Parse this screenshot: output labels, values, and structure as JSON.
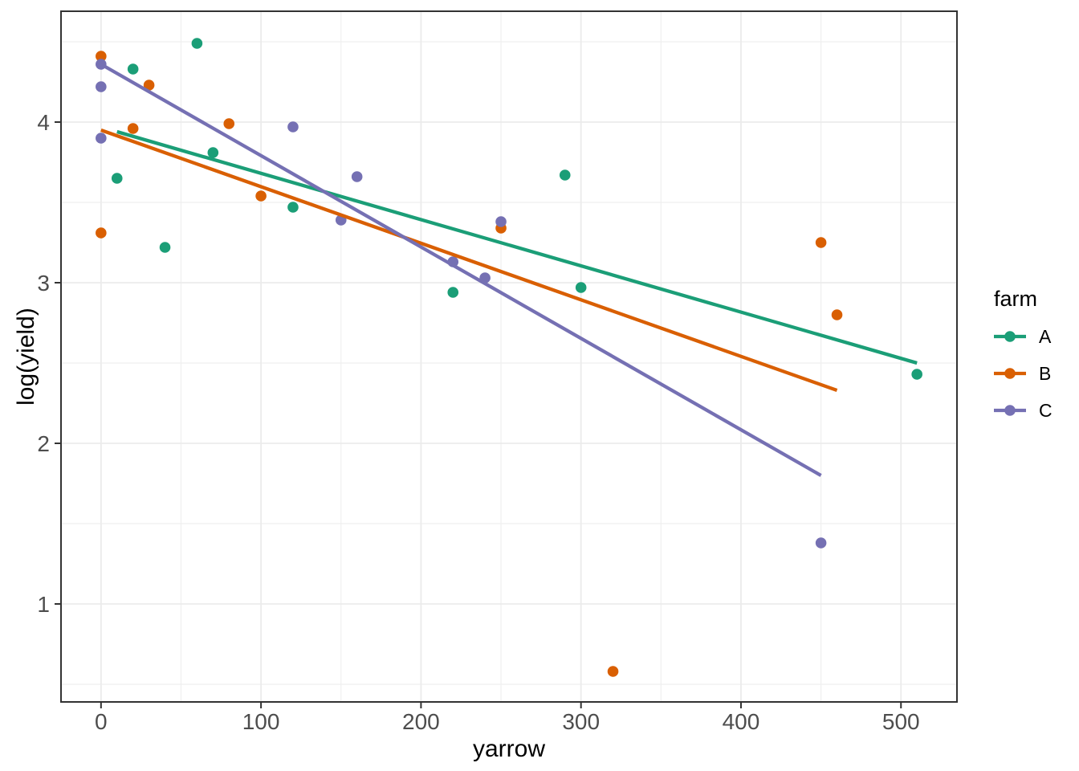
{
  "chart_data": {
    "type": "scatter",
    "title": "",
    "xlabel": "yarrow",
    "ylabel": "log(yield)",
    "grid": "on",
    "xlim": [
      -25,
      535
    ],
    "ylim": [
      0.39,
      4.69
    ],
    "x_ticks": [
      0,
      100,
      200,
      300,
      400,
      500
    ],
    "y_ticks": [
      1,
      2,
      3,
      4
    ],
    "x_minor_ticks": [
      50,
      150,
      250,
      350,
      450
    ],
    "y_minor_ticks": [
      0.5,
      1.5,
      2.5,
      3.5,
      4.5
    ],
    "legend": {
      "title": "farm",
      "position": "right",
      "entries": [
        "A",
        "B",
        "C"
      ]
    },
    "series": [
      {
        "name": "A",
        "color": "#1B9E77",
        "points": [
          [
            10,
            3.65
          ],
          [
            20,
            4.33
          ],
          [
            40,
            3.22
          ],
          [
            60,
            4.49
          ],
          [
            70,
            3.81
          ],
          [
            120,
            3.47
          ],
          [
            220,
            2.94
          ],
          [
            290,
            3.67
          ],
          [
            300,
            2.97
          ],
          [
            510,
            2.43
          ]
        ],
        "trend": {
          "x1": 10,
          "y1": 3.94,
          "x2": 510,
          "y2": 2.5
        }
      },
      {
        "name": "B",
        "color": "#D95F02",
        "points": [
          [
            0,
            4.41
          ],
          [
            0,
            3.31
          ],
          [
            20,
            3.96
          ],
          [
            30,
            4.23
          ],
          [
            80,
            3.99
          ],
          [
            100,
            3.54
          ],
          [
            250,
            3.34
          ],
          [
            320,
            0.58
          ],
          [
            450,
            3.25
          ],
          [
            460,
            2.8
          ]
        ],
        "trend": {
          "x1": 0,
          "y1": 3.95,
          "x2": 460,
          "y2": 2.33
        }
      },
      {
        "name": "C",
        "color": "#7570B3",
        "points": [
          [
            0,
            4.36
          ],
          [
            0,
            4.22
          ],
          [
            0,
            3.9
          ],
          [
            120,
            3.97
          ],
          [
            150,
            3.39
          ],
          [
            160,
            3.66
          ],
          [
            220,
            3.13
          ],
          [
            240,
            3.03
          ],
          [
            250,
            3.38
          ],
          [
            450,
            1.38
          ]
        ],
        "trend": {
          "x1": 0,
          "y1": 4.36,
          "x2": 450,
          "y2": 1.8
        }
      }
    ],
    "style": {
      "background": "#FFFFFF",
      "grid_major_color": "#EBEBEB",
      "grid_minor_color": "#EFEFEF",
      "panel_border_color": "#333333",
      "tick_color": "#333333",
      "axis_text_color": "#4D4D4D",
      "axis_title_color": "#000000",
      "point_radius": 6.8,
      "line_width": 4.3
    }
  }
}
